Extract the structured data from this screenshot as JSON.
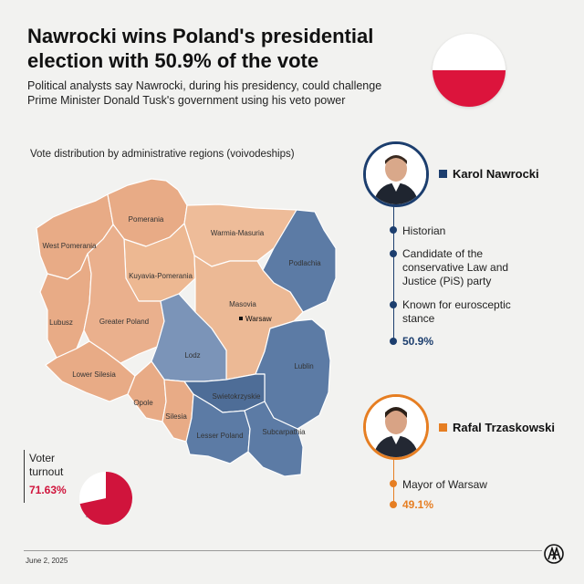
{
  "header": {
    "title": "Nawrocki wins Poland's presidential election with 50.9% of the vote",
    "subtitle": "Political analysts say Nawrocki, during his presidency, could challenge Prime Minister Donald Tusk's government using his veto power"
  },
  "map": {
    "caption": "Vote distribution by administrative regions (voivodeships)",
    "colors": {
      "nawrocki": "#5c7ba5",
      "trzaskowski": "#e8ab86",
      "trzaskowski_light": "#eebb98",
      "nawrocki_light": "#7b94b8"
    },
    "capital": "Warsaw",
    "regions": [
      {
        "name": "Pomerania",
        "winner": "trzaskowski"
      },
      {
        "name": "West Pomerania",
        "winner": "trzaskowski"
      },
      {
        "name": "Warmia-Masuria",
        "winner": "trzaskowski"
      },
      {
        "name": "Podlachia",
        "winner": "nawrocki"
      },
      {
        "name": "Kuyavia-Pomerania",
        "winner": "trzaskowski"
      },
      {
        "name": "Masovia",
        "winner": "trzaskowski"
      },
      {
        "name": "Lubusz",
        "winner": "trzaskowski"
      },
      {
        "name": "Greater Poland",
        "winner": "trzaskowski"
      },
      {
        "name": "Lodz",
        "winner": "nawrocki"
      },
      {
        "name": "Lublin",
        "winner": "nawrocki"
      },
      {
        "name": "Lower Silesia",
        "winner": "trzaskowski"
      },
      {
        "name": "Opole",
        "winner": "trzaskowski"
      },
      {
        "name": "Silesia",
        "winner": "trzaskowski"
      },
      {
        "name": "Swietokrzyskie",
        "winner": "nawrocki"
      },
      {
        "name": "Lesser Poland",
        "winner": "nawrocki"
      },
      {
        "name": "Subcarpathia",
        "winner": "nawrocki"
      }
    ]
  },
  "candidates": {
    "nawrocki": {
      "name": "Karol Nawrocki",
      "color": "#1c3e6e",
      "facts": [
        "Historian",
        "Candidate of the conservative Law and Justice (PiS) party",
        "Known for eurosceptic stance"
      ],
      "result": "50.9%"
    },
    "trzaskowski": {
      "name": "Rafal Trzaskowski",
      "color": "#e67e22",
      "facts": [
        "Mayor of Warsaw"
      ],
      "result": "49.1%"
    }
  },
  "turnout": {
    "label": "Voter turnout",
    "value": "71.63%",
    "fraction": 0.7163,
    "color": "#d0143c"
  },
  "footer": {
    "date": "June 2, 2025",
    "logo": "AA"
  }
}
